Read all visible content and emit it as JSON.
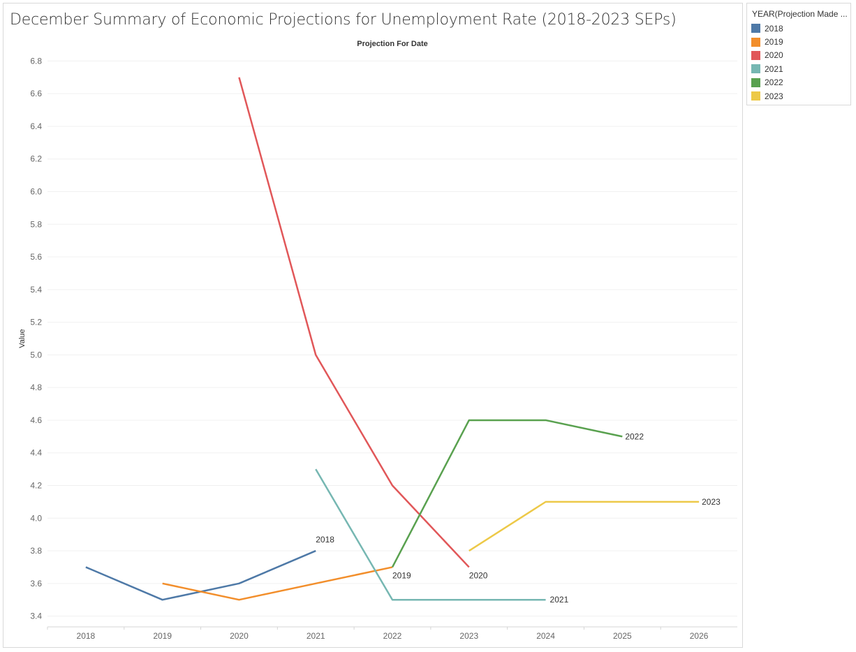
{
  "chart_data": {
    "type": "line",
    "title": "December Summary of Economic Projections for Unemployment Rate (2018-2023 SEPs)",
    "xlabel": "Projection For Date",
    "ylabel": "Value",
    "x": [
      2018,
      2019,
      2020,
      2021,
      2022,
      2023,
      2024,
      2025,
      2026
    ],
    "ylim": [
      3.4,
      6.8
    ],
    "yticks": [
      "3.4",
      "3.6",
      "3.8",
      "4.0",
      "4.2",
      "4.4",
      "4.6",
      "4.8",
      "5.0",
      "5.2",
      "5.4",
      "5.6",
      "5.8",
      "6.0",
      "6.2",
      "6.4",
      "6.6",
      "6.8"
    ],
    "grid": true,
    "legend": {
      "title": "YEAR(Projection  Made ...",
      "placement": "right"
    },
    "series": [
      {
        "name": "2018",
        "color": "#4e79a7",
        "x": [
          2018,
          2019,
          2020,
          2021
        ],
        "values": [
          3.7,
          3.5,
          3.6,
          3.8
        ]
      },
      {
        "name": "2019",
        "color": "#f28e2b",
        "x": [
          2019,
          2020,
          2021,
          2022
        ],
        "values": [
          3.6,
          3.5,
          3.6,
          3.7
        ]
      },
      {
        "name": "2020",
        "color": "#e15759",
        "x": [
          2020,
          2021,
          2022,
          2023
        ],
        "values": [
          6.7,
          5.0,
          4.2,
          3.7
        ]
      },
      {
        "name": "2021",
        "color": "#76b7b2",
        "x": [
          2021,
          2022,
          2023,
          2024
        ],
        "values": [
          4.3,
          3.5,
          3.5,
          3.5
        ]
      },
      {
        "name": "2022",
        "color": "#59a14f",
        "x": [
          2022,
          2023,
          2024,
          2025
        ],
        "values": [
          3.7,
          4.6,
          4.6,
          4.5
        ]
      },
      {
        "name": "2023",
        "color": "#edc948",
        "x": [
          2023,
          2024,
          2025,
          2026
        ],
        "values": [
          3.8,
          4.1,
          4.1,
          4.1
        ]
      }
    ]
  }
}
